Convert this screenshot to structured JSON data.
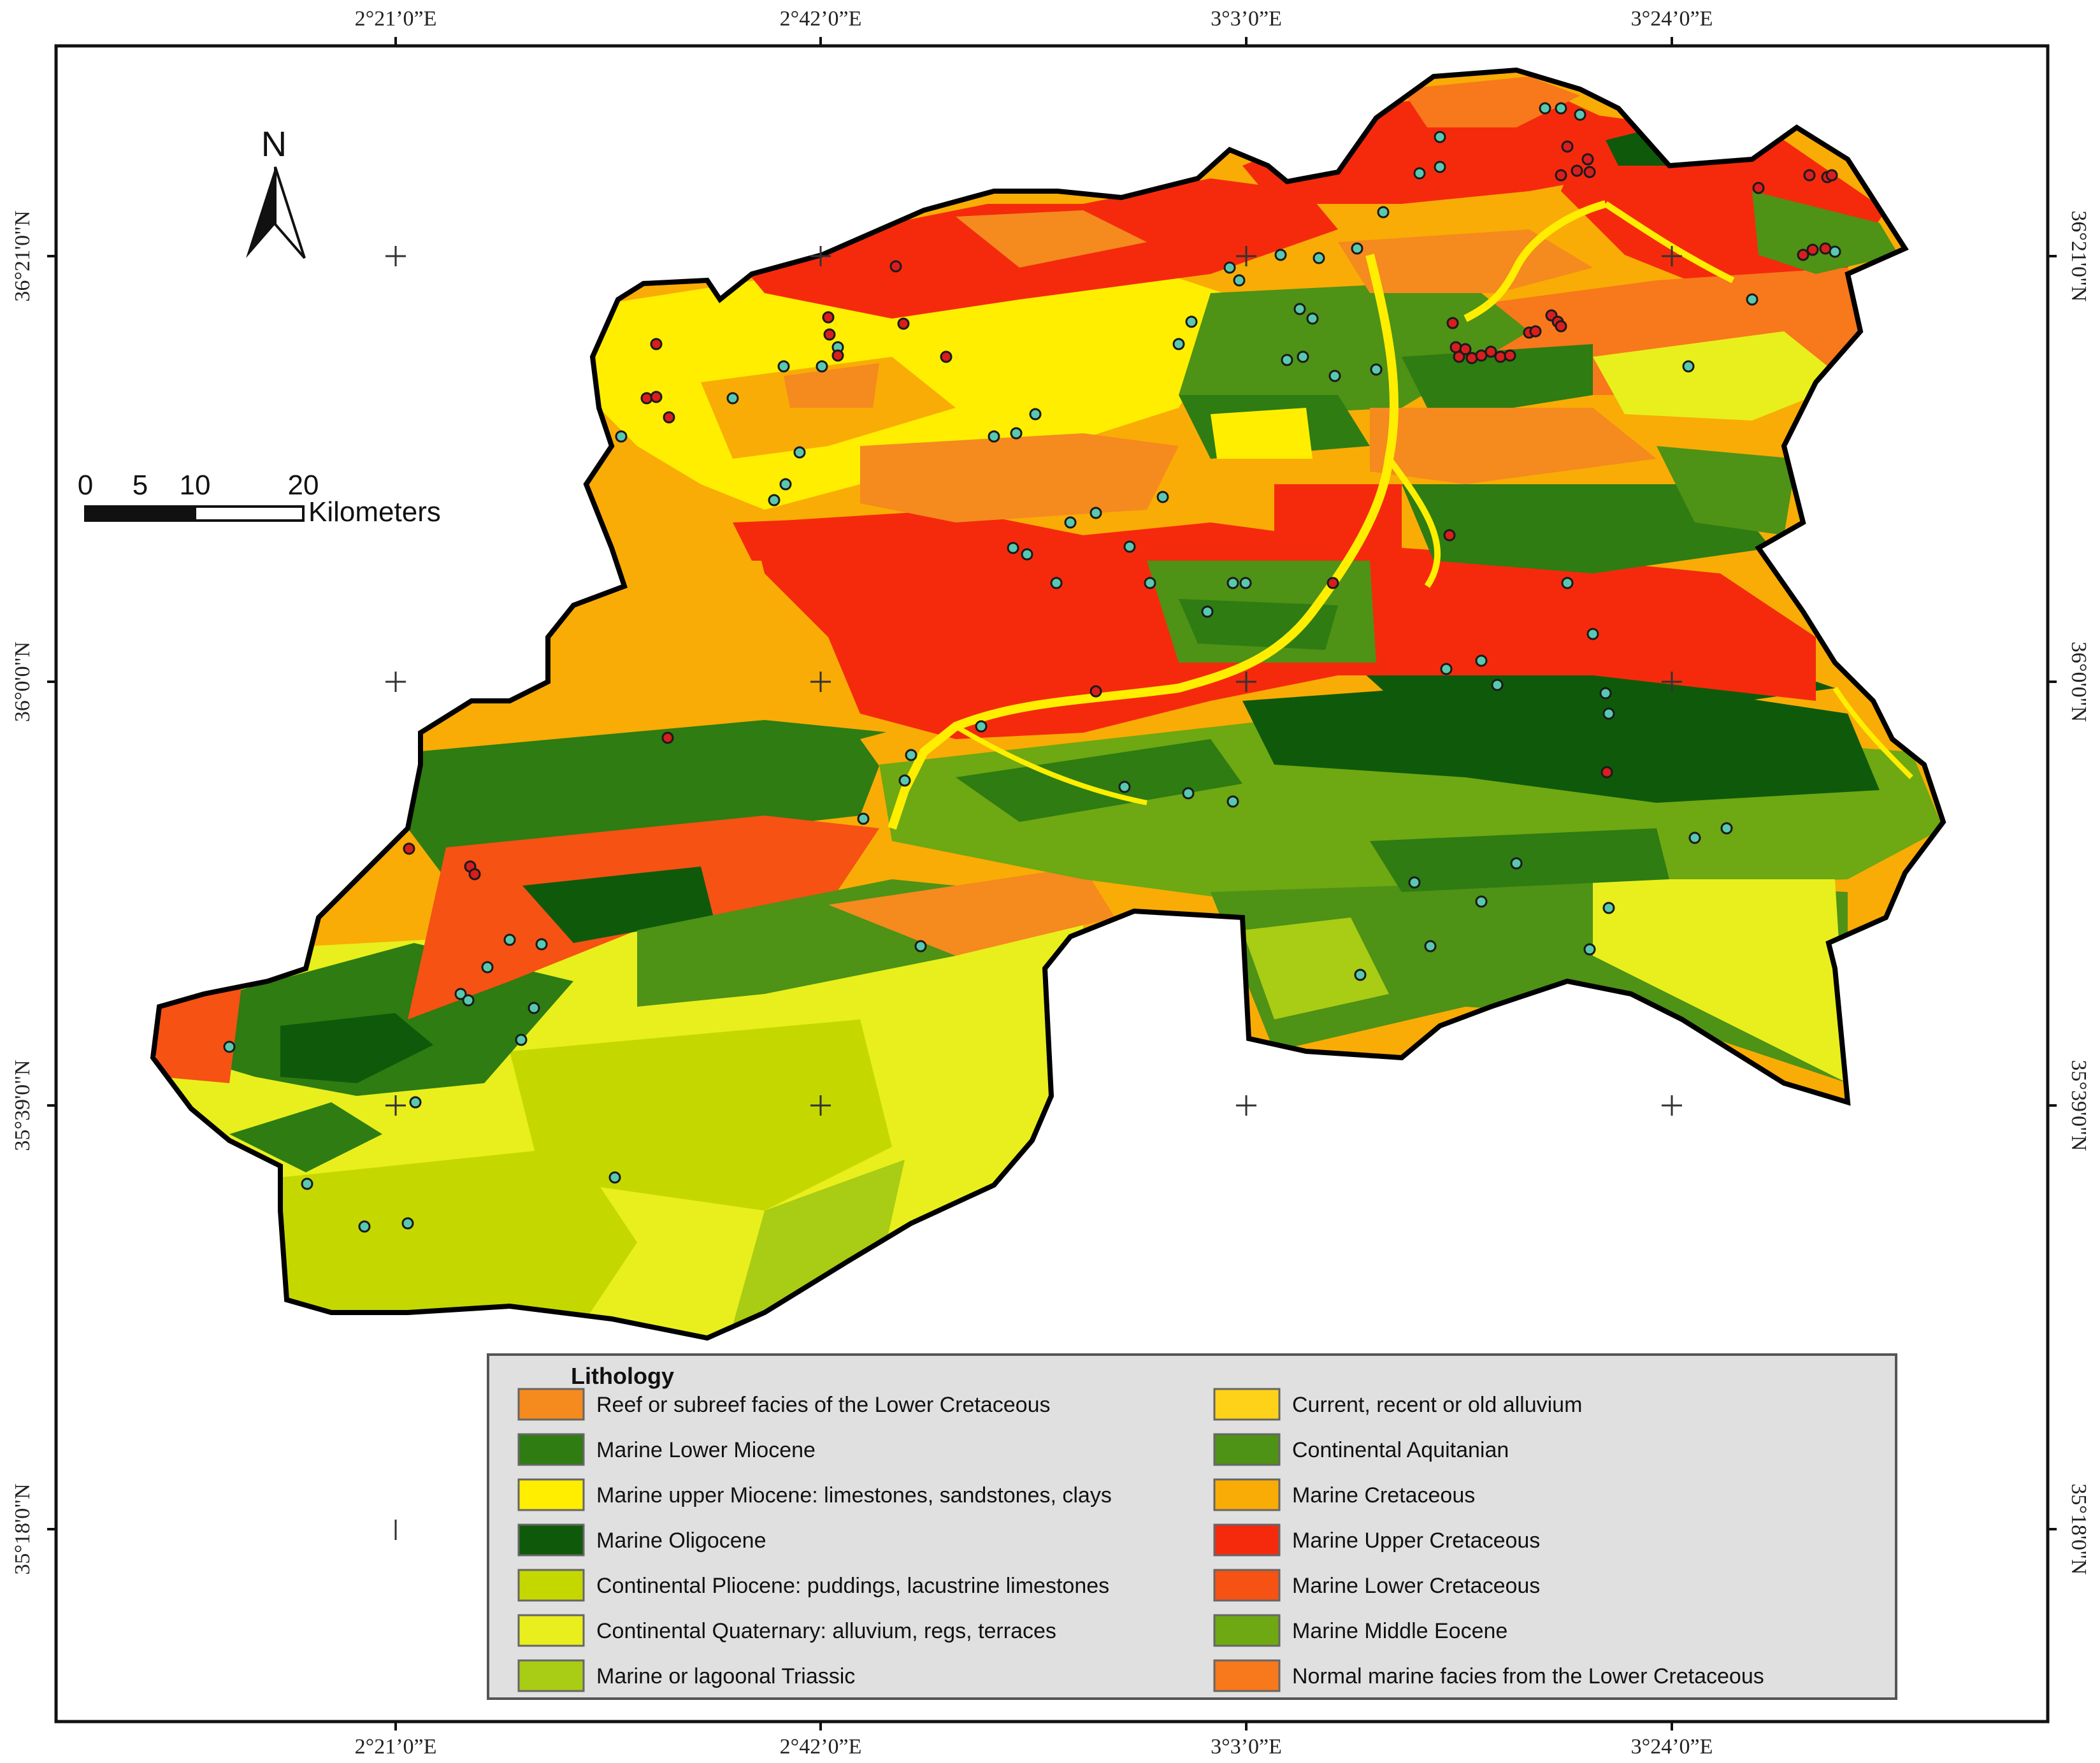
{
  "map": {
    "top_longitudes": [
      "2°21’0”E",
      "2°42’0”E",
      "3°3’0”E",
      "3°24’0”E"
    ],
    "bottom_longitudes": [
      "2°21’0”E",
      "2°42’0”E",
      "3°3’0”E",
      "3°24’0”E"
    ],
    "left_latitudes": [
      "36°21'0\"N",
      "36°0'0\"N",
      "35°39'0\"N",
      "35°18'0\"N"
    ],
    "right_latitudes": [
      "36°21'0\"N",
      "36°0'0\"N",
      "35°39'0\"N",
      "35°18'0\"N"
    ],
    "north_arrow": {
      "label": "N",
      "icon": "north-arrow-icon"
    },
    "scale_bar": {
      "ticks": [
        "0",
        "5",
        "10",
        "20"
      ],
      "unit": "Kilometers"
    },
    "colors": {
      "teal_points": "#58c9b0",
      "red_points": "#d81e1e"
    }
  },
  "legend": {
    "title": "Lithology",
    "items": [
      {
        "label": "Reef or subreef facies of the Lower Cretaceous",
        "color": "#f58a1f"
      },
      {
        "label": "Marine Lower Miocene",
        "color": "#2e7c12"
      },
      {
        "label": "Marine upper Miocene: limestones, sandstones, clays",
        "color": "#ffee00"
      },
      {
        "label": "Marine Oligocene",
        "color": "#0e5a0a"
      },
      {
        "label": "Continental Pliocene: puddings, lacustrine limestones",
        "color": "#c4d800"
      },
      {
        "label": "Continental Quaternary: alluvium, regs, terraces",
        "color": "#e8ef1c"
      },
      {
        "label": "Marine or lagoonal Triassic",
        "color": "#a9cc14"
      },
      {
        "label": "Current, recent or old alluvium",
        "color": "#ffd21a"
      },
      {
        "label": "Continental Aquitanian",
        "color": "#4e9216"
      },
      {
        "label": "Marine Cretaceous",
        "color": "#f9ac05"
      },
      {
        "label": "Marine Upper Cretaceous",
        "color": "#f52a0c"
      },
      {
        "label": "Marine Lower Cretaceous",
        "color": "#f55214"
      },
      {
        "label": "Marine Middle Eocene",
        "color": "#6ea812"
      },
      {
        "label": "Normal marine facies from the Lower Cretaceous",
        "color": "#f8781c"
      }
    ]
  }
}
